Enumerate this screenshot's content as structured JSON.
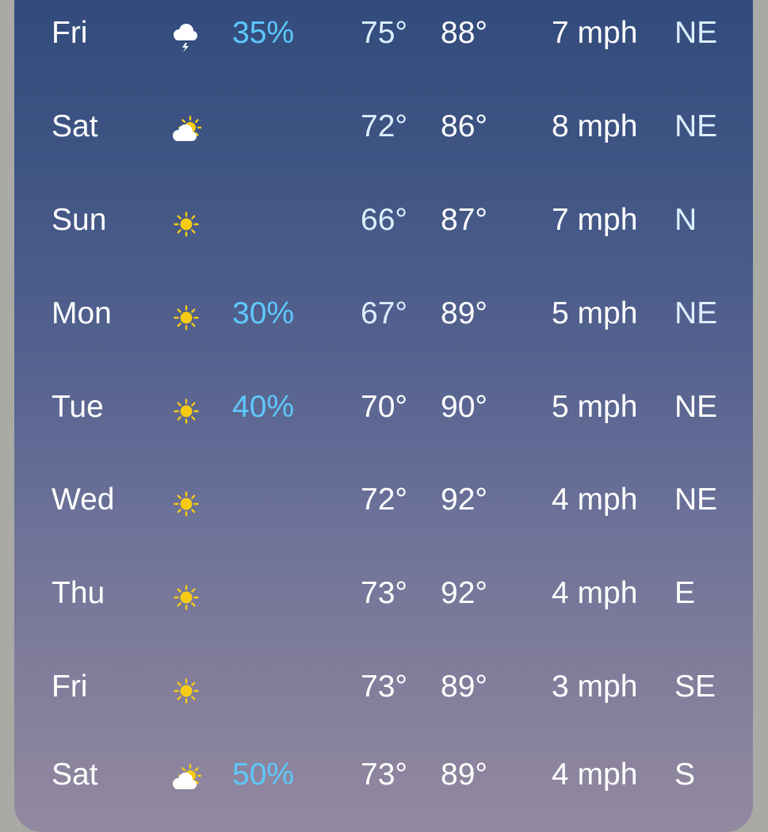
{
  "colors": {
    "precip": "#5ec8fb",
    "sun": "#f7cb15",
    "cloud": "#ffffff"
  },
  "forecast": [
    {
      "day": "Fri",
      "icon": "thunderstorm-icon",
      "precip": "35%",
      "low": "75°",
      "high": "88°",
      "wind": "7 mph",
      "dir": "NE"
    },
    {
      "day": "Sat",
      "icon": "partly-cloudy-icon",
      "precip": "",
      "low": "72°",
      "high": "86°",
      "wind": "8 mph",
      "dir": "NE"
    },
    {
      "day": "Sun",
      "icon": "sun-icon",
      "precip": "",
      "low": "66°",
      "high": "87°",
      "wind": "7 mph",
      "dir": "N"
    },
    {
      "day": "Mon",
      "icon": "sun-icon",
      "precip": "30%",
      "low": "67°",
      "high": "89°",
      "wind": "5 mph",
      "dir": "NE"
    },
    {
      "day": "Tue",
      "icon": "sun-icon",
      "precip": "40%",
      "low": "70°",
      "high": "90°",
      "wind": "5 mph",
      "dir": "NE"
    },
    {
      "day": "Wed",
      "icon": "sun-icon",
      "precip": "",
      "low": "72°",
      "high": "92°",
      "wind": "4 mph",
      "dir": "NE"
    },
    {
      "day": "Thu",
      "icon": "sun-icon",
      "precip": "",
      "low": "73°",
      "high": "92°",
      "wind": "4 mph",
      "dir": "E"
    },
    {
      "day": "Fri",
      "icon": "sun-icon",
      "precip": "",
      "low": "73°",
      "high": "89°",
      "wind": "3 mph",
      "dir": "SE"
    },
    {
      "day": "Sat",
      "icon": "partly-cloudy-icon",
      "precip": "50%",
      "low": "73°",
      "high": "89°",
      "wind": "4 mph",
      "dir": "S"
    }
  ]
}
